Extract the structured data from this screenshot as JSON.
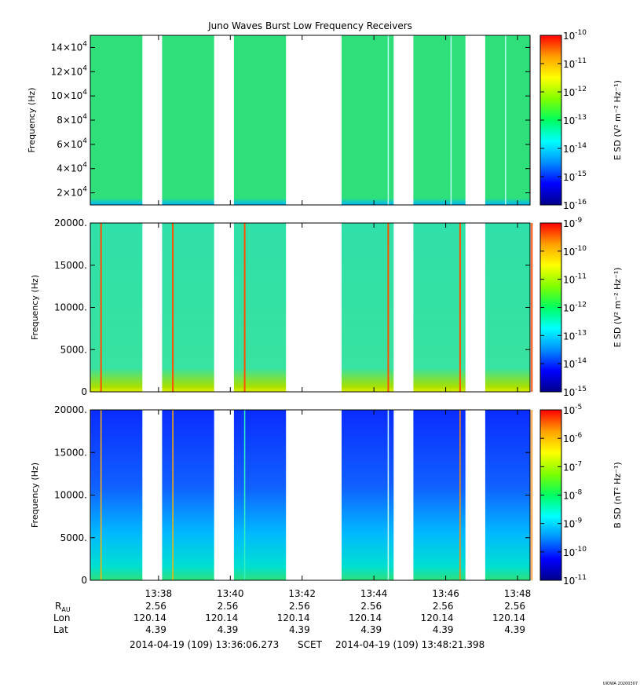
{
  "title": "Juno Waves Burst Low Frequency Receivers",
  "footer": {
    "start": "2014-04-19 (109) 13:36:06.273",
    "scet": "SCET",
    "end": "2014-04-19 (109) 13:48:21.398",
    "stamp": "UIOWA 20200307"
  },
  "ephemeris": {
    "labels": {
      "r": "R",
      "r_sub": "AU",
      "lon": "Lon",
      "lat": "Lat"
    },
    "r_values": [
      "2.56",
      "2.56",
      "2.56",
      "2.56",
      "2.56",
      "2.56"
    ],
    "lon_values": [
      "120.14",
      "120.14",
      "120.14",
      "120.14",
      "120.14",
      "120.14"
    ],
    "lat_values": [
      "4.39",
      "4.39",
      "4.39",
      "4.39",
      "4.39",
      "4.39"
    ]
  },
  "chart_data": [
    {
      "type": "heatmap",
      "ylabel": "Frequency (Hz)",
      "ylim": [
        10000,
        150000
      ],
      "yticks": [
        {
          "value": 20000,
          "mant": "2×10",
          "exp": "4"
        },
        {
          "value": 40000,
          "mant": "4×10",
          "exp": "4"
        },
        {
          "value": 60000,
          "mant": "6×10",
          "exp": "4"
        },
        {
          "value": 80000,
          "mant": "8×10",
          "exp": "4"
        },
        {
          "value": 100000,
          "mant": "10×10",
          "exp": "4"
        },
        {
          "value": 120000,
          "mant": "12×10",
          "exp": "4"
        },
        {
          "value": 140000,
          "mant": "14×10",
          "exp": "4"
        }
      ],
      "colorbar": {
        "label": "E SD (V² m⁻² Hz⁻¹)",
        "exp_range": [
          -16,
          -10
        ],
        "scale": "log"
      },
      "background_color": "#2fe07a",
      "low_edge_color": "#00b8ff",
      "spikes": [
        {
          "t": "13:44:24",
          "color": "#b8fff0"
        },
        {
          "t": "13:46:09",
          "color": "#b8fff0"
        },
        {
          "t": "13:47:40",
          "color": "#b8fff0"
        }
      ]
    },
    {
      "type": "heatmap",
      "ylabel": "Frequency (Hz)",
      "ylim": [
        0,
        20000
      ],
      "yticks": [
        {
          "value": 0,
          "mant": "0",
          "exp": ""
        },
        {
          "value": 5000,
          "mant": "5000.",
          "exp": ""
        },
        {
          "value": 10000,
          "mant": "10000.",
          "exp": ""
        },
        {
          "value": 15000,
          "mant": "15000.",
          "exp": ""
        },
        {
          "value": 20000,
          "mant": "20000.",
          "exp": ""
        }
      ],
      "colorbar": {
        "label": "E SD (V² m⁻² Hz⁻¹)",
        "exp_range": [
          -15,
          -9
        ],
        "scale": "log"
      },
      "background_color": "#2fe0a8",
      "low_edge_color": "#a8e000",
      "spikes": [
        {
          "t": "13:36:24",
          "color": "#ff5000"
        },
        {
          "t": "13:38:24",
          "color": "#ff5000"
        },
        {
          "t": "13:40:24",
          "color": "#ff5000"
        },
        {
          "t": "13:44:24",
          "color": "#ff5000"
        },
        {
          "t": "13:46:24",
          "color": "#ff5000"
        },
        {
          "t": "13:48:24",
          "color": "#ff5000"
        }
      ]
    },
    {
      "type": "heatmap",
      "ylabel": "Frequency (Hz)",
      "ylim": [
        0,
        20000
      ],
      "yticks": [
        {
          "value": 0,
          "mant": "0",
          "exp": ""
        },
        {
          "value": 5000,
          "mant": "5000.",
          "exp": ""
        },
        {
          "value": 10000,
          "mant": "10000.",
          "exp": ""
        },
        {
          "value": 15000,
          "mant": "15000.",
          "exp": ""
        },
        {
          "value": 20000,
          "mant": "20000.",
          "exp": ""
        }
      ],
      "colorbar": {
        "label": "B SD (nT² Hz⁻¹)",
        "exp_range": [
          -11,
          -5
        ],
        "scale": "log"
      },
      "background_color": "#0a2cff",
      "mid_color": "#00b8ff",
      "low_edge_color": "#2fe07a",
      "spikes": [
        {
          "t": "13:36:24",
          "color": "#ffb000"
        },
        {
          "t": "13:38:24",
          "color": "#ffb000"
        },
        {
          "t": "13:40:24",
          "color": "#2ff0c0"
        },
        {
          "t": "13:44:24",
          "color": "#c8fff0"
        },
        {
          "t": "13:46:24",
          "color": "#ff8800"
        },
        {
          "t": "13:48:24",
          "color": "#ff8800"
        }
      ]
    }
  ],
  "xaxis": {
    "start": "13:36:06",
    "end": "13:48:21",
    "tick_labels": [
      "13:38",
      "13:40",
      "13:42",
      "13:44",
      "13:46",
      "13:48"
    ],
    "segments": [
      [
        "13:36:06",
        "13:37:33"
      ],
      [
        "13:38:06",
        "13:39:33"
      ],
      [
        "13:40:06",
        "13:41:33"
      ],
      [
        "13:43:06",
        "13:44:33"
      ],
      [
        "13:45:06",
        "13:46:33"
      ],
      [
        "13:47:06",
        "13:48:21"
      ]
    ]
  }
}
